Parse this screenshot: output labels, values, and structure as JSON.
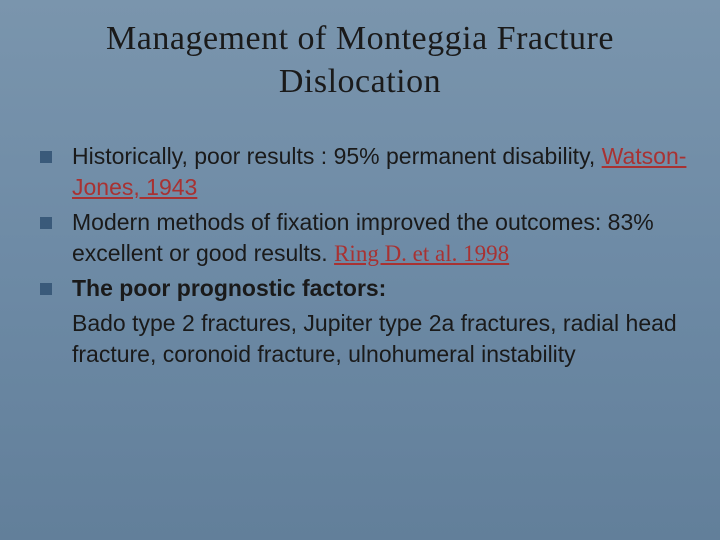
{
  "colors": {
    "background_top": "#7a95ad",
    "background_bottom": "#627f9a",
    "bullet_square": "#3a5a7a",
    "text_main": "#1a1a1a",
    "ref_red": "#a83232"
  },
  "typography": {
    "title_fontsize": 34,
    "body_fontsize": 23,
    "title_font": "Times New Roman",
    "body_font": "Verdana"
  },
  "title": "Management of Monteggia Fracture Dislocation",
  "bullets": [
    {
      "pre": "Historically, poor results : 95% permanent disability, ",
      "ref": "Watson-Jones, 1943",
      "ref_class": "ref-red",
      "post": ""
    },
    {
      "pre": "Modern methods  of fixation improved the outcomes: 83% excellent or good results. ",
      "ref": "Ring D. et al. 1998",
      "ref_class": "ref-red ref-times",
      "post": ""
    },
    {
      "pre": " ",
      "ref": "The poor prognostic factors:",
      "ref_class": "bold",
      "post": ""
    }
  ],
  "subtext": " Bado type 2 fractures, Jupiter type 2a fractures, radial head fracture, coronoid fracture, ulnohumeral instability"
}
